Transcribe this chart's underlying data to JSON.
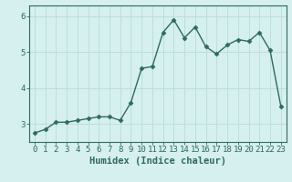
{
  "x": [
    0,
    1,
    2,
    3,
    4,
    5,
    6,
    7,
    8,
    9,
    10,
    11,
    12,
    13,
    14,
    15,
    16,
    17,
    18,
    19,
    20,
    21,
    22,
    23
  ],
  "y": [
    2.75,
    2.85,
    3.05,
    3.05,
    3.1,
    3.15,
    3.2,
    3.2,
    3.1,
    3.6,
    4.55,
    4.6,
    5.55,
    5.9,
    5.4,
    5.7,
    5.15,
    4.95,
    5.2,
    5.35,
    5.3,
    5.55,
    5.05,
    3.5
  ],
  "line_color": "#2d6b5e",
  "marker": "D",
  "marker_size": 2.5,
  "bg_color": "#d6efef",
  "grid_color": "#b8dcdc",
  "axis_color": "#2d6b5e",
  "xlabel": "Humidex (Indice chaleur)",
  "ylim": [
    2.5,
    6.3
  ],
  "xlim": [
    -0.5,
    23.5
  ],
  "yticks": [
    3,
    4,
    5,
    6
  ],
  "xticks": [
    0,
    1,
    2,
    3,
    4,
    5,
    6,
    7,
    8,
    9,
    10,
    11,
    12,
    13,
    14,
    15,
    16,
    17,
    18,
    19,
    20,
    21,
    22,
    23
  ],
  "xlabel_fontsize": 7.5,
  "tick_fontsize": 6.5,
  "linewidth": 1.0
}
